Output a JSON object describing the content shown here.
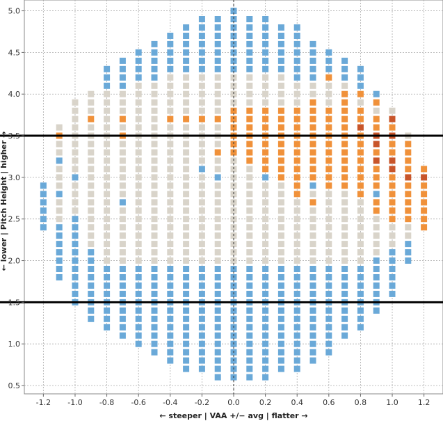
{
  "chart_data": {
    "type": "heatmap",
    "title": "",
    "xlabel": "← steeper | VAA +/− avg | flatter →",
    "ylabel": "← lower | Pitch Height | higher →",
    "xlim": [
      -1.32,
      1.32
    ],
    "ylim": [
      0.4,
      5.13
    ],
    "x_ticks": [
      "-1.2",
      "-1.0",
      "-0.8",
      "-0.6",
      "-0.4",
      "-0.2",
      "0.0",
      "0.2",
      "0.4",
      "0.6",
      "0.8",
      "1.0",
      "1.2"
    ],
    "y_ticks": [
      "0.5",
      "1.0",
      "1.5",
      "2.0",
      "2.5",
      "3.0",
      "3.5",
      "4.0",
      "4.5",
      "5.0"
    ],
    "grid": true,
    "x_step": 0.1,
    "y_step": 0.1,
    "reference_lines": [
      1.5,
      3.5
    ],
    "vertical_reference": 0.0,
    "colors": {
      "blue": "#6aa9d8",
      "gray": "#d9d4ca",
      "orange": "#f0913a",
      "darkorange": "#c8552a",
      "reference_line": "#000000",
      "grid": "#aaaaaa"
    },
    "columns": [
      {
        "x": -1.2,
        "y_min": 2.4,
        "y_max": 2.9
      },
      {
        "x": -1.1,
        "y_min": 1.8,
        "y_max": 3.6
      },
      {
        "x": -1.0,
        "y_min": 1.5,
        "y_max": 3.9
      },
      {
        "x": -0.9,
        "y_min": 1.3,
        "y_max": 4.0
      },
      {
        "x": -0.8,
        "y_min": 1.2,
        "y_max": 4.3
      },
      {
        "x": -0.7,
        "y_min": 1.1,
        "y_max": 4.4
      },
      {
        "x": -0.6,
        "y_min": 1.0,
        "y_max": 4.5
      },
      {
        "x": -0.5,
        "y_min": 0.9,
        "y_max": 4.6
      },
      {
        "x": -0.4,
        "y_min": 0.8,
        "y_max": 4.7
      },
      {
        "x": -0.3,
        "y_min": 0.7,
        "y_max": 4.8
      },
      {
        "x": -0.2,
        "y_min": 0.7,
        "y_max": 4.9
      },
      {
        "x": -0.1,
        "y_min": 0.6,
        "y_max": 4.9
      },
      {
        "x": 0.0,
        "y_min": 0.6,
        "y_max": 5.0
      },
      {
        "x": 0.1,
        "y_min": 0.6,
        "y_max": 4.9
      },
      {
        "x": 0.2,
        "y_min": 0.6,
        "y_max": 4.9
      },
      {
        "x": 0.3,
        "y_min": 0.7,
        "y_max": 4.8
      },
      {
        "x": 0.4,
        "y_min": 0.7,
        "y_max": 4.8
      },
      {
        "x": 0.5,
        "y_min": 0.8,
        "y_max": 4.6
      },
      {
        "x": 0.6,
        "y_min": 0.9,
        "y_max": 4.5
      },
      {
        "x": 0.7,
        "y_min": 1.1,
        "y_max": 4.4
      },
      {
        "x": 0.8,
        "y_min": 1.2,
        "y_max": 4.3
      },
      {
        "x": 0.9,
        "y_min": 1.4,
        "y_max": 4.0
      },
      {
        "x": 1.0,
        "y_min": 1.6,
        "y_max": 3.8
      },
      {
        "x": 1.1,
        "y_min": 2.0,
        "y_max": 3.5
      },
      {
        "x": 1.2,
        "y_min": 2.4,
        "y_max": 3.1
      }
    ],
    "gray_regions": [
      {
        "x_min": -1.1,
        "x_max": -1.1,
        "y_min": 2.5,
        "y_max": 3.6
      },
      {
        "x_min": -1.0,
        "x_max": -1.0,
        "y_min": 2.6,
        "y_max": 3.9
      },
      {
        "x_min": -0.9,
        "x_max": -0.9,
        "y_min": 2.2,
        "y_max": 4.0
      },
      {
        "x_min": -0.8,
        "x_max": -0.7,
        "y_min": 2.0,
        "y_max": 4.0
      },
      {
        "x_min": -0.6,
        "x_max": -0.5,
        "y_min": 2.0,
        "y_max": 4.1
      },
      {
        "x_min": -0.4,
        "x_max": 0.3,
        "y_min": 2.0,
        "y_max": 4.2
      },
      {
        "x_min": 0.4,
        "x_max": 0.7,
        "y_min": 2.0,
        "y_max": 4.1
      },
      {
        "x_min": 0.8,
        "x_max": 0.8,
        "y_min": 2.0,
        "y_max": 3.9
      },
      {
        "x_min": 0.9,
        "x_max": 0.9,
        "y_min": 2.1,
        "y_max": 3.9
      },
      {
        "x_min": 1.0,
        "x_max": 1.0,
        "y_min": 2.2,
        "y_max": 3.8
      },
      {
        "x_min": 1.1,
        "x_max": 1.1,
        "y_min": 2.3,
        "y_max": 3.5
      },
      {
        "x_min": 1.2,
        "x_max": 1.2,
        "y_min": 2.5,
        "y_max": 3.1
      }
    ],
    "blue_exceptions": [
      [
        -1.1,
        3.2
      ],
      [
        -1.1,
        2.8
      ],
      [
        -1.0,
        3.0
      ],
      [
        -0.7,
        2.7
      ],
      [
        -0.2,
        3.1
      ],
      [
        -0.1,
        3.0
      ],
      [
        0.2,
        3.0
      ],
      [
        0.5,
        2.9
      ],
      [
        0.9,
        2.8
      ],
      [
        1.0,
        4.0
      ]
    ],
    "orange_regions": [
      {
        "x_min": 0.0,
        "x_max": 0.0,
        "y_min": 3.3,
        "y_max": 3.8
      },
      {
        "x_min": 0.1,
        "x_max": 0.1,
        "y_min": 3.2,
        "y_max": 3.8
      },
      {
        "x_min": 0.2,
        "x_max": 0.2,
        "y_min": 3.1,
        "y_max": 3.8
      },
      {
        "x_min": 0.3,
        "x_max": 0.3,
        "y_min": 3.0,
        "y_max": 3.8
      },
      {
        "x_min": 0.4,
        "x_max": 0.4,
        "y_min": 2.8,
        "y_max": 3.8
      },
      {
        "x_min": 0.5,
        "x_max": 0.5,
        "y_min": 3.0,
        "y_max": 3.8
      },
      {
        "x_min": 0.6,
        "x_max": 0.6,
        "y_min": 2.9,
        "y_max": 3.8
      },
      {
        "x_min": 0.7,
        "x_max": 0.7,
        "y_min": 2.9,
        "y_max": 3.8
      },
      {
        "x_min": 0.8,
        "x_max": 0.8,
        "y_min": 2.8,
        "y_max": 3.8
      },
      {
        "x_min": 0.9,
        "x_max": 0.9,
        "y_min": 2.6,
        "y_max": 3.7
      },
      {
        "x_min": 1.0,
        "x_max": 1.0,
        "y_min": 2.5,
        "y_max": 3.7
      },
      {
        "x_min": 1.1,
        "x_max": 1.1,
        "y_min": 2.5,
        "y_max": 3.4
      },
      {
        "x_min": 1.2,
        "x_max": 1.2,
        "y_min": 2.4,
        "y_max": 3.1
      }
    ],
    "orange_points": [
      [
        -1.1,
        3.5
      ],
      [
        -0.9,
        3.7
      ],
      [
        -0.7,
        3.7
      ],
      [
        -0.7,
        3.5
      ],
      [
        -0.4,
        3.7
      ],
      [
        -0.3,
        3.7
      ],
      [
        -0.2,
        3.7
      ],
      [
        -0.1,
        3.7
      ],
      [
        -0.1,
        3.3
      ],
      [
        0.5,
        2.7
      ],
      [
        0.5,
        3.9
      ],
      [
        0.7,
        3.9
      ],
      [
        0.7,
        4.0
      ],
      [
        0.6,
        4.2
      ],
      [
        0.8,
        4.0
      ],
      [
        0.9,
        3.9
      ],
      [
        1.0,
        3.9
      ]
    ],
    "darkorange_points": [
      [
        0.8,
        3.6
      ],
      [
        0.9,
        3.5
      ],
      [
        0.9,
        3.4
      ],
      [
        0.9,
        3.2
      ],
      [
        1.0,
        3.7
      ],
      [
        1.0,
        3.2
      ],
      [
        1.0,
        3.1
      ],
      [
        1.1,
        3.0
      ],
      [
        1.2,
        3.0
      ],
      [
        1.0,
        3.5
      ]
    ]
  }
}
